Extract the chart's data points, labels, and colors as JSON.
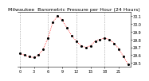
{
  "title": "Milwaukee  Barometric Pressure per Hour (24 Hours)",
  "hours": [
    0,
    1,
    2,
    3,
    4,
    5,
    6,
    7,
    8,
    9,
    10,
    11,
    12,
    13,
    14,
    15,
    16,
    17,
    18,
    19,
    20,
    21,
    22,
    23
  ],
  "pressure": [
    29.62,
    29.6,
    29.58,
    29.57,
    29.6,
    29.68,
    29.82,
    30.02,
    30.1,
    30.05,
    29.95,
    29.85,
    29.78,
    29.72,
    29.7,
    29.72,
    29.78,
    29.8,
    29.82,
    29.8,
    29.75,
    29.68,
    29.58,
    29.48
  ],
  "line_color": "#ff0000",
  "dot_color": "#000000",
  "bg_color": "#ffffff",
  "grid_color": "#888888",
  "ylim_min": 29.45,
  "ylim_max": 30.15,
  "ytick_min": 29.5,
  "ytick_max": 30.1,
  "ytick_step": 0.1,
  "xlim_min": 0,
  "xlim_max": 23,
  "xticks": [
    0,
    3,
    6,
    9,
    12,
    15,
    18,
    21
  ],
  "vgrid_hours": [
    0,
    6,
    12,
    18
  ],
  "title_fontsize": 4.5,
  "tick_fontsize": 3.5,
  "line_width": 0.6,
  "dot_size": 1.5,
  "grid_linewidth": 0.4
}
